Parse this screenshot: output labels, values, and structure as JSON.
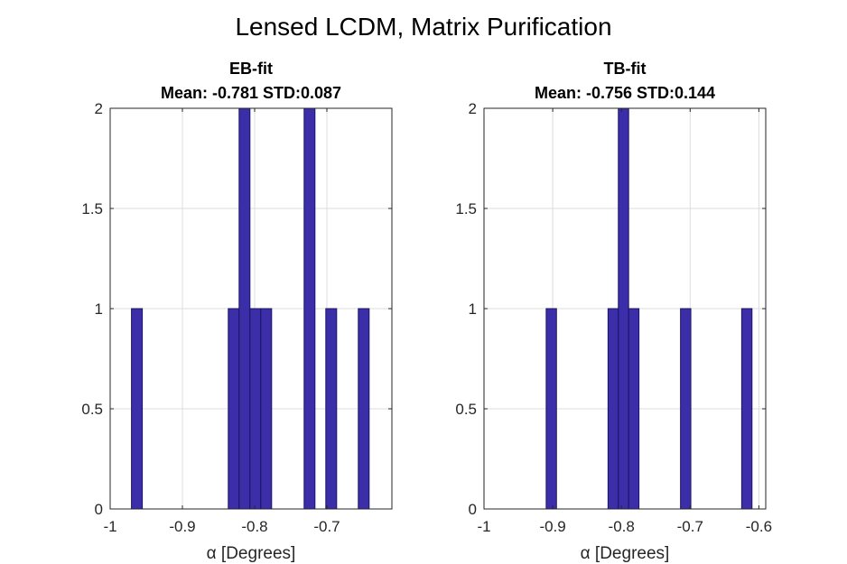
{
  "figure": {
    "title": "Lensed LCDM, Matrix Purification",
    "bar_color": "#3b2ea8",
    "bar_edge_color": "#1a1466",
    "grid_color": "#dcdcdc"
  },
  "chart_data": [
    {
      "type": "bar",
      "panel": "left",
      "title_line1": "EB-fit",
      "title_line2": "Mean: -0.781 STD:0.087",
      "xlabel": "α [Degrees]",
      "ylabel": "",
      "xlim": [
        -1.0,
        -0.61
      ],
      "ylim": [
        0,
        2
      ],
      "xticks": [
        -1.0,
        -0.9,
        -0.8,
        -0.7
      ],
      "xtick_labels": [
        "-1",
        "-0.9",
        "-0.8",
        "-0.7"
      ],
      "yticks": [
        0,
        0.5,
        1,
        1.5,
        2
      ],
      "ytick_labels": [
        "0",
        "0.5",
        "1",
        "1.5",
        "2"
      ],
      "grid": true,
      "bins": [
        {
          "x0": -0.9705,
          "x1": -0.9555,
          "count": 1
        },
        {
          "x0": -0.8365,
          "x1": -0.8215,
          "count": 1
        },
        {
          "x0": -0.8215,
          "x1": -0.8065,
          "count": 2
        },
        {
          "x0": -0.8065,
          "x1": -0.7915,
          "count": 1
        },
        {
          "x0": -0.7915,
          "x1": -0.7765,
          "count": 1
        },
        {
          "x0": -0.7315,
          "x1": -0.7165,
          "count": 2
        },
        {
          "x0": -0.7015,
          "x1": -0.6865,
          "count": 1
        },
        {
          "x0": -0.6565,
          "x1": -0.6415,
          "count": 1
        }
      ]
    },
    {
      "type": "bar",
      "panel": "right",
      "title_line1": "TB-fit",
      "title_line2": "Mean: -0.756 STD:0.144",
      "xlabel": "α [Degrees]",
      "ylabel": "",
      "xlim": [
        -1.0,
        -0.59
      ],
      "ylim": [
        0,
        2
      ],
      "xticks": [
        -1.0,
        -0.9,
        -0.8,
        -0.7,
        -0.6
      ],
      "xtick_labels": [
        "-1",
        "-0.9",
        "-0.8",
        "-0.7",
        "-0.6"
      ],
      "yticks": [
        0,
        0.5,
        1,
        1.5,
        2
      ],
      "ytick_labels": [
        "0",
        "0.5",
        "1",
        "1.5",
        "2"
      ],
      "grid": true,
      "bins": [
        {
          "x0": -0.9095,
          "x1": -0.8945,
          "count": 1
        },
        {
          "x0": -0.8195,
          "x1": -0.8045,
          "count": 1
        },
        {
          "x0": -0.8045,
          "x1": -0.7895,
          "count": 2
        },
        {
          "x0": -0.7895,
          "x1": -0.7745,
          "count": 1
        },
        {
          "x0": -0.714,
          "x1": -0.699,
          "count": 1
        },
        {
          "x0": -0.625,
          "x1": -0.61,
          "count": 1
        }
      ]
    }
  ]
}
